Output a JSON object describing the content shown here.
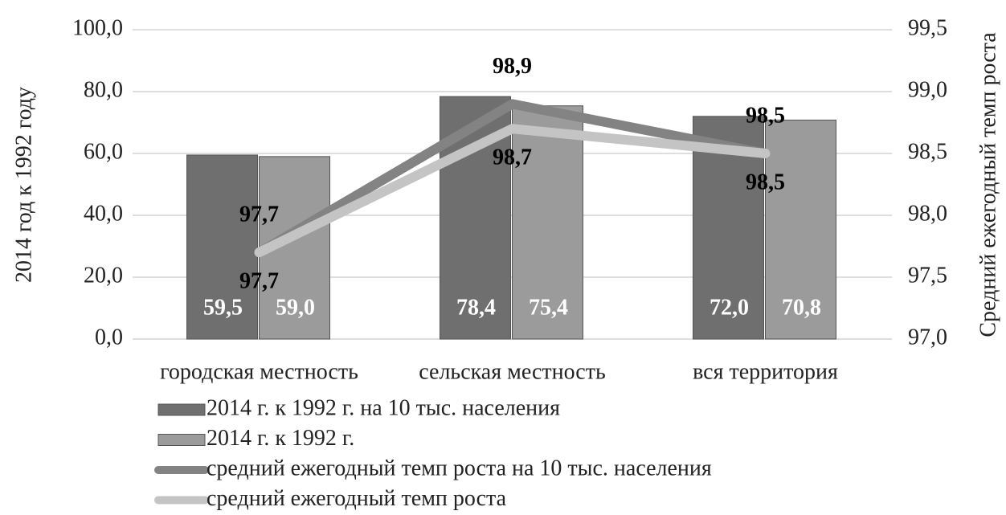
{
  "chart_data": {
    "type": "bar_line",
    "categories": [
      "городская местность",
      "сельская местность",
      "вся территория"
    ],
    "ylabel": "2014 год к 1992 году",
    "y2label": "Средний ежегодный темп роста",
    "ylim": [
      0,
      100
    ],
    "yticks": [
      {
        "value": 0,
        "label": "0,0"
      },
      {
        "value": 20,
        "label": "20,0"
      },
      {
        "value": 40,
        "label": "40,0"
      },
      {
        "value": 60,
        "label": "60,0"
      },
      {
        "value": 80,
        "label": "80,0"
      },
      {
        "value": 100,
        "label": "100,0"
      }
    ],
    "y2lim": [
      97,
      99.5
    ],
    "y2ticks": [
      {
        "value": 97,
        "label": "97,0"
      },
      {
        "value": 97.5,
        "label": "97,5"
      },
      {
        "value": 98,
        "label": "98,0"
      },
      {
        "value": 98.5,
        "label": "98,5"
      },
      {
        "value": 99,
        "label": "99,0"
      },
      {
        "value": 99.5,
        "label": "99,5"
      }
    ],
    "grid": true,
    "series": [
      {
        "name": "2014 г. к 1992 г. на 10 тыс. населения",
        "kind": "bar",
        "color": "#6f6f6f",
        "values": [
          59.5,
          78.4,
          72.0
        ],
        "value_labels": [
          "59,5",
          "78,4",
          "72,0"
        ]
      },
      {
        "name": "2014 г. к 1992 г.",
        "kind": "bar",
        "color": "#9b9b9b",
        "values": [
          59.0,
          75.4,
          70.8
        ],
        "value_labels": [
          "59,0",
          "75,4",
          "70,8"
        ]
      },
      {
        "name": "средний ежегодный темп роста на 10 тыс. населения",
        "kind": "line",
        "axis": "y2",
        "color": "#838383",
        "values": [
          97.7,
          98.9,
          98.5
        ],
        "value_labels": [
          "97,7",
          "98,9",
          "98,5"
        ]
      },
      {
        "name": "средний ежегодный темп роста",
        "kind": "line",
        "axis": "y2",
        "color": "#c4c4c4",
        "values": [
          97.7,
          98.7,
          98.5
        ],
        "value_labels": [
          "97,7",
          "98,7",
          "98,5"
        ]
      }
    ]
  }
}
